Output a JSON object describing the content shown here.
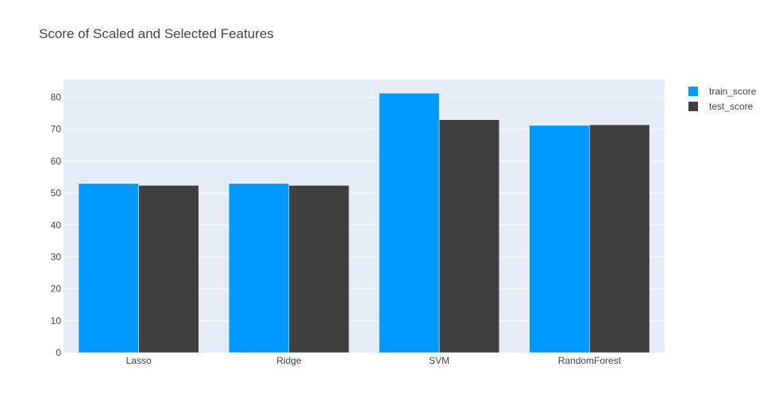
{
  "chart_data": {
    "type": "bar",
    "title": "Score of Scaled and Selected Features",
    "xlabel": "",
    "ylabel": "",
    "categories": [
      "Lasso",
      "Ridge",
      "SVM",
      "RandomForest"
    ],
    "series": [
      {
        "name": "train_score",
        "values": [
          53.0,
          53.0,
          81.3,
          71.2
        ],
        "color": "#0099ff"
      },
      {
        "name": "test_score",
        "values": [
          52.4,
          52.4,
          73.0,
          71.4
        ],
        "color": "#404040"
      }
    ],
    "ylim": [
      0,
      85.6
    ],
    "yticks": [
      0,
      10,
      20,
      30,
      40,
      50,
      60,
      70,
      80
    ],
    "grid": true,
    "legend_position": "top-right",
    "plot_background": "#e5ecf6",
    "grid_color": "#ffffff"
  }
}
